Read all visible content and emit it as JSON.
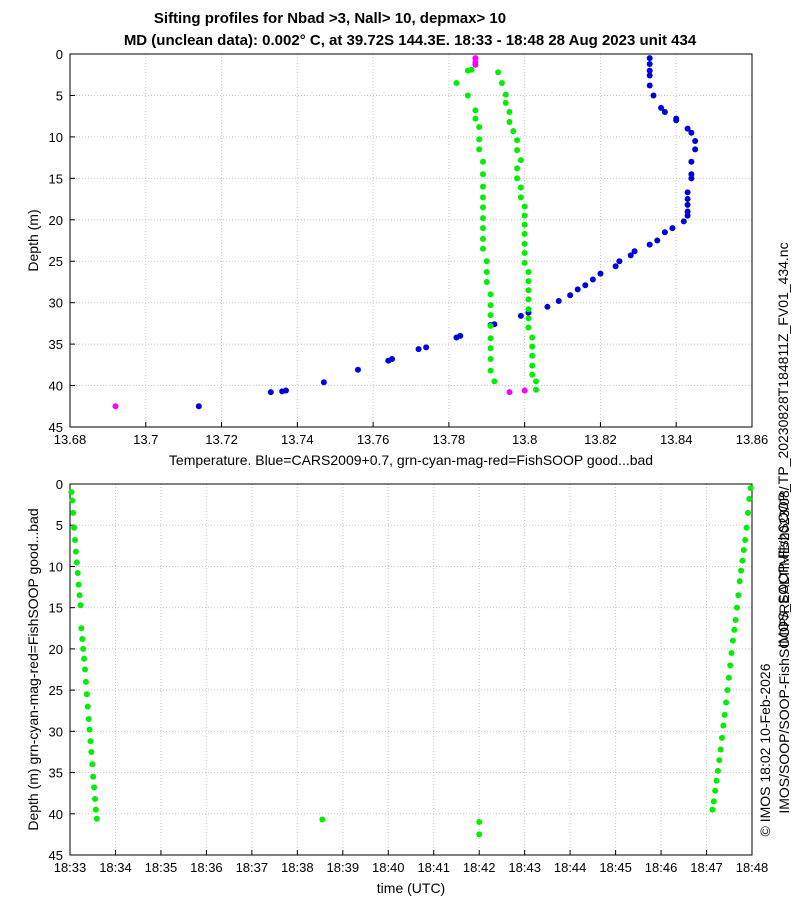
{
  "title_line1": "Sifting profiles for Nbad >3, Nall> 10, depmax> 10",
  "title_line2": "MD (unclean data): 0.002° C, at 39.72S 144.3E. 18:33 - 18:48 28 Aug 2023 unit 434",
  "side_text_file": "IMOS_SOOP-FishSOOP_TP_20230828T184811Z_FV01_434.nc",
  "side_text_path": "IMOS/SOOP/SOOP-FishSOOP/REALTIME/2023/08/",
  "side_text_credit": "© IMOS 18:02 10-Feb-2026",
  "colors": {
    "cars": "#0000dd",
    "good": "#00ee00",
    "bad": "#ff00ff"
  },
  "chart_data": [
    {
      "type": "scatter",
      "xlabel": "Temperature. Blue=CARS2009+0.7, grn-cyan-mag-red=FishSOOP good...bad",
      "ylabel": "Depth (m)",
      "xlim": [
        13.68,
        13.86
      ],
      "ylim": [
        45,
        0
      ],
      "y_reversed": true,
      "grid": true,
      "xticks": [
        "13.68",
        "13.7",
        "13.72",
        "13.74",
        "13.76",
        "13.78",
        "13.8",
        "13.82",
        "13.84",
        "13.86"
      ],
      "yticks": [
        "0",
        "5",
        "10",
        "15",
        "20",
        "25",
        "30",
        "35",
        "40",
        "45"
      ],
      "series": [
        {
          "color_key": "cars",
          "points": [
            [
              13.833,
              0.5
            ],
            [
              13.833,
              1.2
            ],
            [
              13.833,
              2
            ],
            [
              13.833,
              2.6
            ],
            [
              13.833,
              3.8
            ],
            [
              13.834,
              5
            ],
            [
              13.836,
              6.5
            ],
            [
              13.837,
              7
            ],
            [
              13.84,
              7.8
            ],
            [
              13.84,
              8
            ],
            [
              13.843,
              9
            ],
            [
              13.844,
              9.5
            ],
            [
              13.845,
              10.5
            ],
            [
              13.845,
              11.5
            ],
            [
              13.844,
              13
            ],
            [
              13.844,
              14.5
            ],
            [
              13.844,
              15
            ],
            [
              13.843,
              16.7
            ],
            [
              13.843,
              17.5
            ],
            [
              13.843,
              18.2
            ],
            [
              13.843,
              19
            ],
            [
              13.843,
              19.5
            ],
            [
              13.842,
              20.2
            ],
            [
              13.839,
              21
            ],
            [
              13.837,
              21.5
            ],
            [
              13.835,
              22.5
            ],
            [
              13.833,
              23
            ],
            [
              13.829,
              23.8
            ],
            [
              13.828,
              24.3
            ],
            [
              13.825,
              25
            ],
            [
              13.824,
              25.6
            ],
            [
              13.82,
              26.5
            ],
            [
              13.818,
              27.2
            ],
            [
              13.816,
              27.9
            ],
            [
              13.814,
              28.4
            ],
            [
              13.812,
              29.1
            ],
            [
              13.809,
              29.8
            ],
            [
              13.806,
              30.5
            ],
            [
              13.801,
              31.2
            ],
            [
              13.799,
              31.6
            ],
            [
              13.792,
              32.6
            ],
            [
              13.791,
              32.7
            ],
            [
              13.783,
              34.0
            ],
            [
              13.782,
              34.2
            ],
            [
              13.774,
              35.4
            ],
            [
              13.772,
              35.6
            ],
            [
              13.765,
              36.8
            ],
            [
              13.764,
              37.0
            ],
            [
              13.756,
              38.1
            ],
            [
              13.747,
              39.6
            ],
            [
              13.737,
              40.6
            ],
            [
              13.736,
              40.7
            ],
            [
              13.733,
              40.8
            ],
            [
              13.714,
              42.5
            ]
          ]
        },
        {
          "color_key": "good",
          "points": [
            [
              13.793,
              2.2
            ],
            [
              13.794,
              3.5
            ],
            [
              13.795,
              4.9
            ],
            [
              13.795,
              5.9
            ],
            [
              13.796,
              7.0
            ],
            [
              13.796,
              8.2
            ],
            [
              13.797,
              9.3
            ],
            [
              13.798,
              10.4
            ],
            [
              13.798,
              11.6
            ],
            [
              13.799,
              12.8
            ],
            [
              13.798,
              13.8
            ],
            [
              13.798,
              15.0
            ],
            [
              13.799,
              16.1
            ],
            [
              13.799,
              17.3
            ],
            [
              13.8,
              18.4
            ],
            [
              13.8,
              19.5
            ],
            [
              13.8,
              20.6
            ],
            [
              13.8,
              21.7
            ],
            [
              13.8,
              22.9
            ],
            [
              13.8,
              24.0
            ],
            [
              13.8,
              25.2
            ],
            [
              13.801,
              26.3
            ],
            [
              13.801,
              27.4
            ],
            [
              13.801,
              28.5
            ],
            [
              13.801,
              29.6
            ],
            [
              13.801,
              30.8
            ],
            [
              13.801,
              31.9
            ],
            [
              13.801,
              33.0
            ],
            [
              13.802,
              34.2
            ],
            [
              13.802,
              35.3
            ],
            [
              13.802,
              36.4
            ],
            [
              13.802,
              37.6
            ],
            [
              13.802,
              38.7
            ],
            [
              13.803,
              39.5
            ],
            [
              13.803,
              40.5
            ],
            [
              13.786,
              1.9
            ],
            [
              13.785,
              2.0
            ],
            [
              13.782,
              3.5
            ],
            [
              13.785,
              5.0
            ],
            [
              13.787,
              6.8
            ],
            [
              13.787,
              7.8
            ],
            [
              13.788,
              8.8
            ],
            [
              13.788,
              10.3
            ],
            [
              13.788,
              11.5
            ],
            [
              13.789,
              13.0
            ],
            [
              13.789,
              14.5
            ],
            [
              13.789,
              16.0
            ],
            [
              13.789,
              17.3
            ],
            [
              13.789,
              18.5
            ],
            [
              13.789,
              19.8
            ],
            [
              13.789,
              21.0
            ],
            [
              13.789,
              22.3
            ],
            [
              13.789,
              23.5
            ],
            [
              13.79,
              25.0
            ],
            [
              13.79,
              26.3
            ],
            [
              13.79,
              27.5
            ],
            [
              13.791,
              29.0
            ],
            [
              13.791,
              30.3
            ],
            [
              13.791,
              31.5
            ],
            [
              13.791,
              32.8
            ],
            [
              13.791,
              34.3
            ],
            [
              13.791,
              35.5
            ],
            [
              13.791,
              36.8
            ],
            [
              13.791,
              38.2
            ],
            [
              13.792,
              39.5
            ]
          ]
        },
        {
          "color_key": "bad",
          "points": [
            [
              13.787,
              0.5
            ],
            [
              13.787,
              1.0
            ],
            [
              13.787,
              1.3
            ],
            [
              13.692,
              42.5
            ],
            [
              13.796,
              40.8
            ],
            [
              13.8,
              40.6
            ]
          ]
        }
      ]
    },
    {
      "type": "scatter",
      "xlabel": "time (UTC)",
      "ylabel": "Depth (m) grn-cyan-mag-red=FishSOOP good...bad",
      "xlim": [
        0,
        15
      ],
      "ylim": [
        45,
        0
      ],
      "y_reversed": true,
      "grid": true,
      "xticks": [
        "18:33",
        "18:34",
        "18:35",
        "18:36",
        "18:37",
        "18:38",
        "18:39",
        "18:40",
        "18:41",
        "18:42",
        "18:43",
        "18:44",
        "18:45",
        "18:46",
        "18:47",
        "18:48"
      ],
      "yticks": [
        "0",
        "5",
        "10",
        "15",
        "20",
        "25",
        "30",
        "35",
        "40",
        "45"
      ],
      "series": [
        {
          "color_key": "good",
          "points": [
            [
              0.03,
              1.0
            ],
            [
              0.05,
              2.0
            ],
            [
              0.07,
              3.5
            ],
            [
              0.09,
              5.3
            ],
            [
              0.11,
              6.8
            ],
            [
              0.13,
              8.2
            ],
            [
              0.15,
              9.5
            ],
            [
              0.17,
              10.8
            ],
            [
              0.19,
              12.2
            ],
            [
              0.21,
              13.5
            ],
            [
              0.23,
              14.7
            ],
            [
              0.25,
              17.5
            ],
            [
              0.27,
              18.8
            ],
            [
              0.29,
              20.0
            ],
            [
              0.31,
              21.2
            ],
            [
              0.33,
              22.5
            ],
            [
              0.35,
              24.0
            ],
            [
              0.37,
              25.5
            ],
            [
              0.39,
              27.0
            ],
            [
              0.41,
              28.5
            ],
            [
              0.43,
              29.8
            ],
            [
              0.45,
              31.2
            ],
            [
              0.47,
              32.5
            ],
            [
              0.49,
              34.0
            ],
            [
              0.51,
              35.5
            ],
            [
              0.53,
              36.8
            ],
            [
              0.55,
              38.2
            ],
            [
              0.57,
              39.5
            ],
            [
              0.59,
              40.6
            ],
            [
              5.55,
              40.7
            ],
            [
              9.0,
              41.0
            ],
            [
              9.0,
              42.5
            ],
            [
              14.97,
              0.5
            ],
            [
              14.94,
              1.8
            ],
            [
              14.91,
              3.5
            ],
            [
              14.88,
              5.3
            ],
            [
              14.85,
              6.8
            ],
            [
              14.82,
              8.0
            ],
            [
              14.79,
              9.3
            ],
            [
              14.76,
              10.5
            ],
            [
              14.73,
              11.8
            ],
            [
              14.7,
              13.5
            ],
            [
              14.67,
              15.0
            ],
            [
              14.64,
              16.5
            ],
            [
              14.61,
              17.7
            ],
            [
              14.58,
              19.0
            ],
            [
              14.55,
              20.5
            ],
            [
              14.52,
              22.0
            ],
            [
              14.49,
              23.5
            ],
            [
              14.46,
              25.0
            ],
            [
              14.43,
              26.5
            ],
            [
              14.4,
              28.0
            ],
            [
              14.37,
              29.3
            ],
            [
              14.34,
              30.8
            ],
            [
              14.31,
              32.2
            ],
            [
              14.28,
              33.5
            ],
            [
              14.25,
              34.8
            ],
            [
              14.22,
              36.0
            ],
            [
              14.19,
              37.2
            ],
            [
              14.16,
              38.5
            ],
            [
              14.13,
              39.5
            ]
          ]
        }
      ]
    }
  ]
}
